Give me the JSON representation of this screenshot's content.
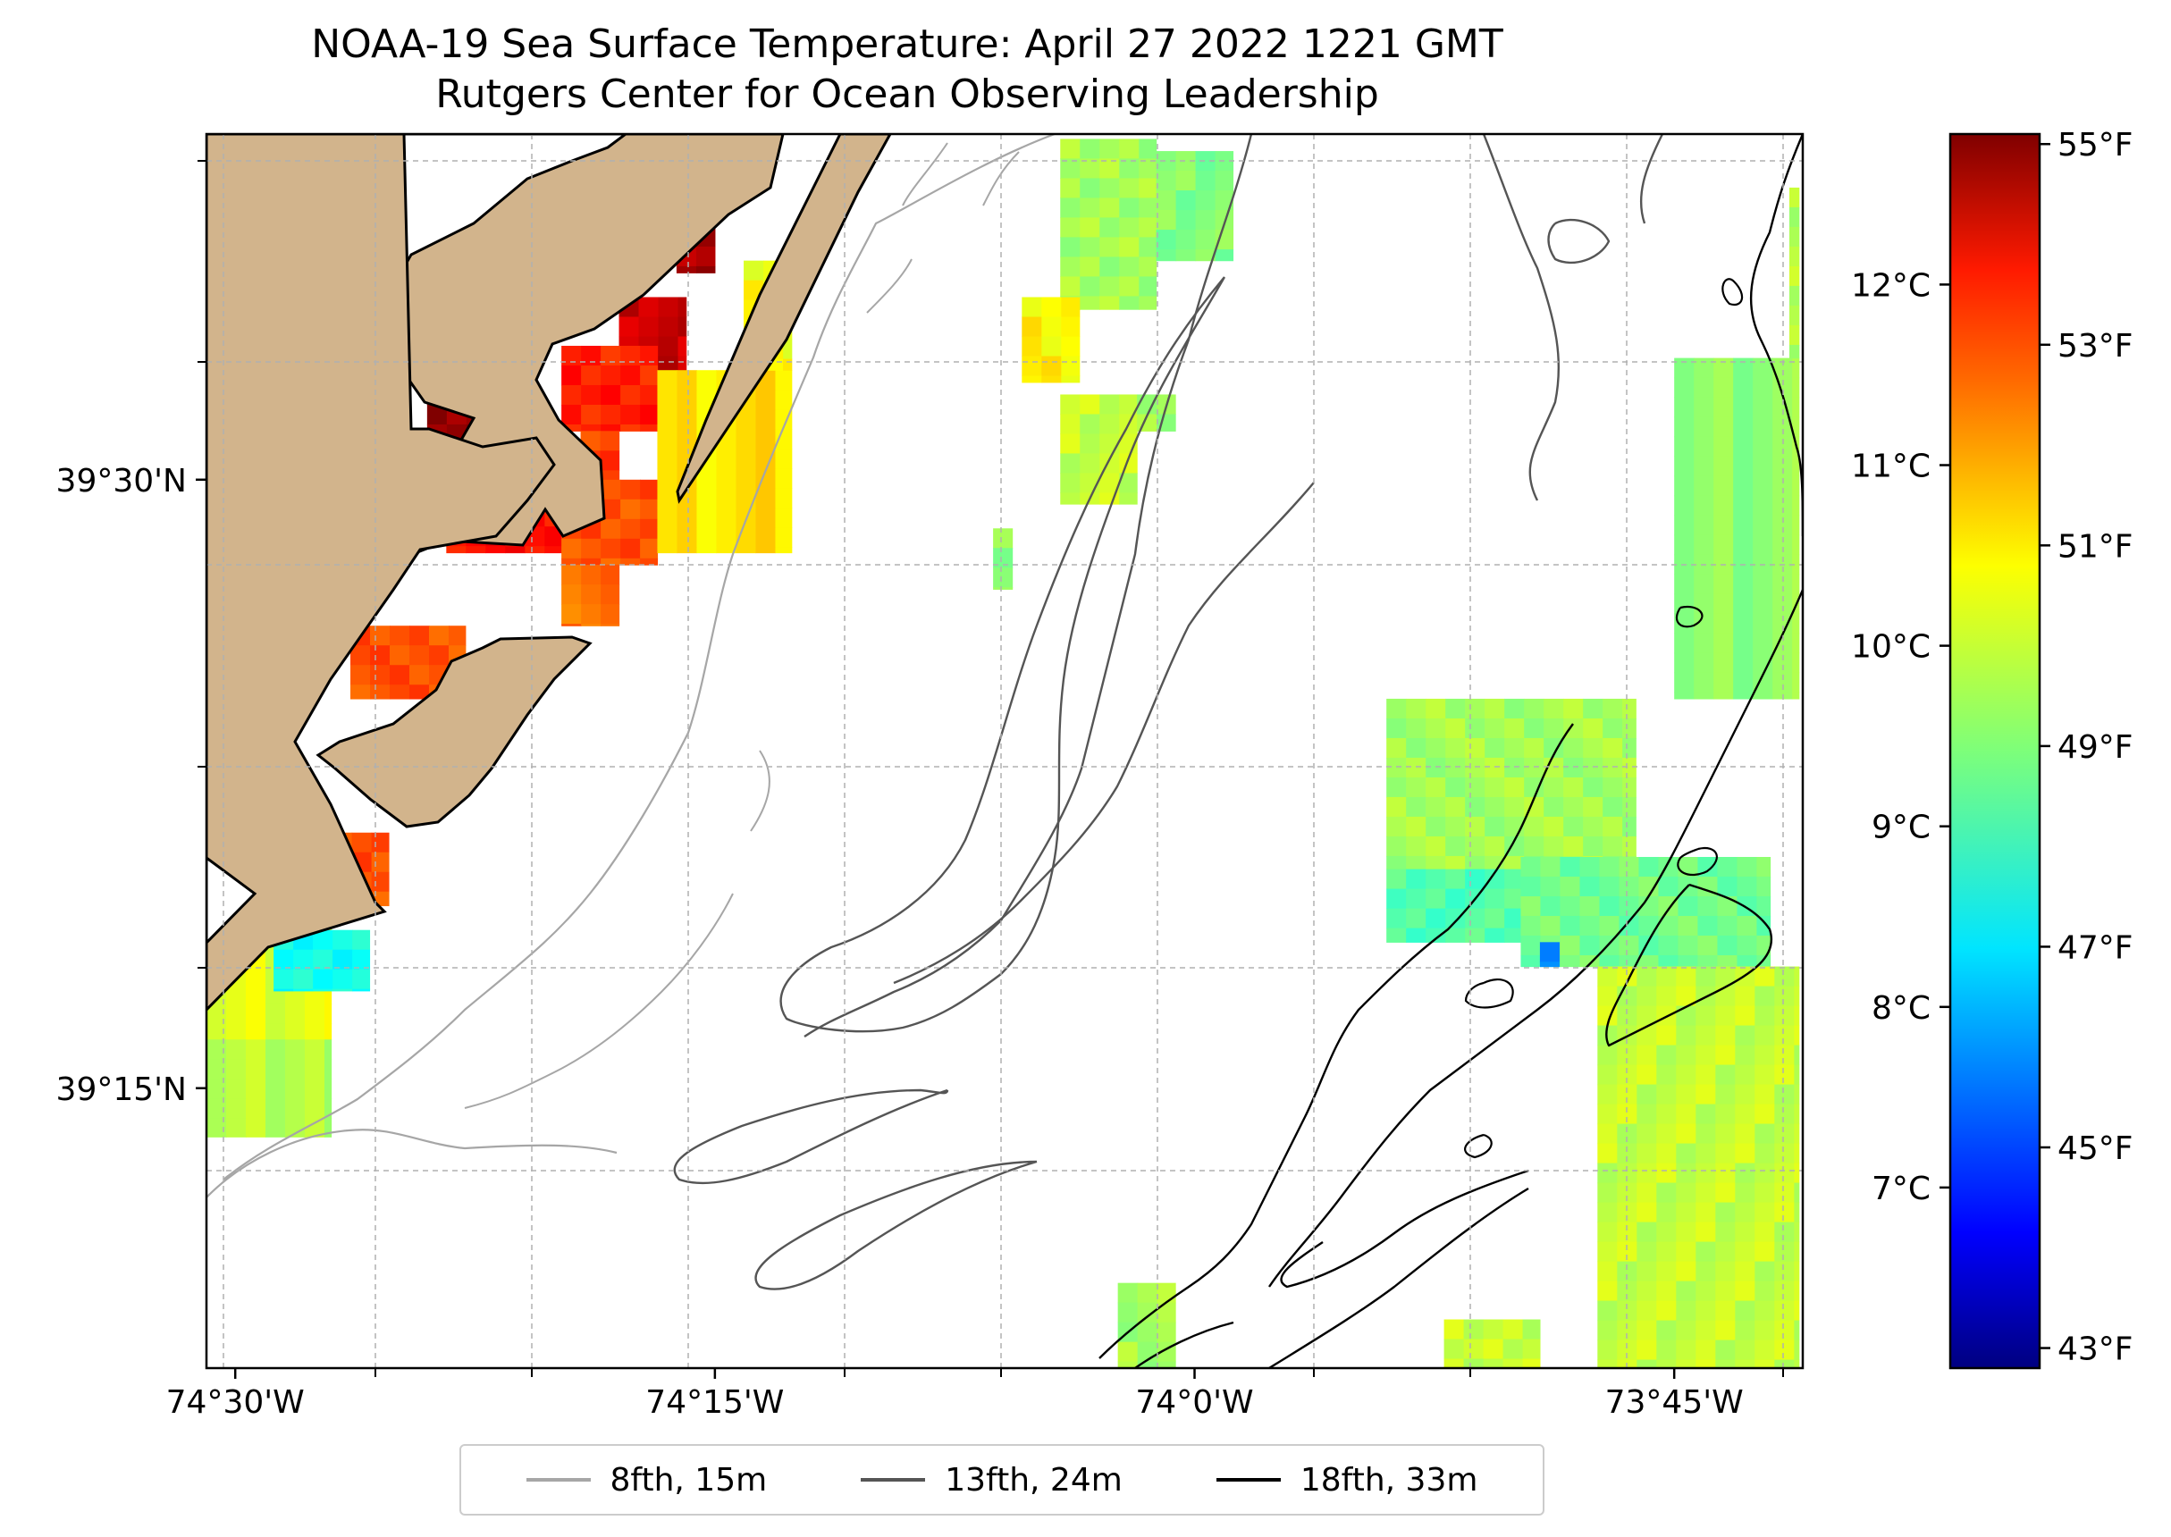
{
  "title": {
    "line1": "NOAA-19 Sea Surface Temperature: April 27 2022 1221 GMT",
    "line2": "Rutgers Center for Ocean Observing Leadership"
  },
  "map": {
    "lon_range": [
      -74.515,
      -73.683
    ],
    "lat_range": [
      39.135,
      39.642
    ],
    "lon_ticks": [
      {
        "value": -74.5,
        "label": "74°30'W"
      },
      {
        "value": -74.25,
        "label": "74°15'W"
      },
      {
        "value": -74.0,
        "label": "74°0'W"
      },
      {
        "value": -73.75,
        "label": "73°45'W"
      }
    ],
    "lat_ticks": [
      {
        "value": 39.5,
        "label": "39°30'N"
      },
      {
        "value": 39.25,
        "label": "39°15'N"
      }
    ],
    "land_color": "#d2b48c",
    "grid": true
  },
  "colorbar": {
    "colormap": "jet",
    "range_f": [
      42.8,
      55.1
    ],
    "f_ticks": [
      {
        "value": 55,
        "label": "55°F"
      },
      {
        "value": 53,
        "label": "53°F"
      },
      {
        "value": 51,
        "label": "51°F"
      },
      {
        "value": 49,
        "label": "49°F"
      },
      {
        "value": 47,
        "label": "47°F"
      },
      {
        "value": 45,
        "label": "45°F"
      },
      {
        "value": 43,
        "label": "43°F"
      }
    ],
    "c_ticks": [
      {
        "value": 12,
        "label": "12°C"
      },
      {
        "value": 11,
        "label": "11°C"
      },
      {
        "value": 10,
        "label": "10°C"
      },
      {
        "value": 9,
        "label": "9°C"
      },
      {
        "value": 8,
        "label": "8°C"
      },
      {
        "value": 7,
        "label": "7°C"
      }
    ]
  },
  "sst_patches_f": [
    {
      "lon": [
        -74.27,
        -74.25
      ],
      "lat": [
        39.585,
        39.62
      ],
      "temp": 54.6
    },
    {
      "lon": [
        -74.3,
        -74.265
      ],
      "lat": [
        39.545,
        39.575
      ],
      "temp": 54.2
    },
    {
      "lon": [
        -74.33,
        -74.28
      ],
      "lat": [
        39.52,
        39.555
      ],
      "temp": 53.2
    },
    {
      "lon": [
        -74.32,
        -74.3
      ],
      "lat": [
        39.49,
        39.52
      ],
      "temp": 52.8
    },
    {
      "lon": [
        -74.4,
        -74.35
      ],
      "lat": [
        39.505,
        39.555
      ],
      "temp": 54.8
    },
    {
      "lon": [
        -74.39,
        -74.33
      ],
      "lat": [
        39.47,
        39.505
      ],
      "temp": 53.4
    },
    {
      "lon": [
        -74.33,
        -74.28
      ],
      "lat": [
        39.465,
        39.5
      ],
      "temp": 52.6
    },
    {
      "lon": [
        -74.33,
        -74.3
      ],
      "lat": [
        39.44,
        39.465
      ],
      "temp": 52.2
    },
    {
      "lon": [
        -74.44,
        -74.38
      ],
      "lat": [
        39.41,
        39.44
      ],
      "temp": 52.6
    },
    {
      "lon": [
        -74.28,
        -74.21
      ],
      "lat": [
        39.47,
        39.545
      ],
      "temp": 50.8
    },
    {
      "lon": [
        -74.235,
        -74.21
      ],
      "lat": [
        39.545,
        39.59
      ],
      "temp": 50.4
    },
    {
      "lon": [
        -74.47,
        -74.42
      ],
      "lat": [
        39.325,
        39.355
      ],
      "temp": 52.6
    },
    {
      "lon": [
        -74.515,
        -74.45
      ],
      "lat": [
        39.27,
        39.325
      ],
      "temp": 50.2
    },
    {
      "lon": [
        -74.48,
        -74.43
      ],
      "lat": [
        39.29,
        39.315
      ],
      "temp": 47.6
    },
    {
      "lon": [
        -74.515,
        -74.45
      ],
      "lat": [
        39.23,
        39.27
      ],
      "temp": 49.6
    },
    {
      "lon": [
        -74.07,
        -74.02
      ],
      "lat": [
        39.57,
        39.64
      ],
      "temp": 49.4
    },
    {
      "lon": [
        -74.02,
        -73.98
      ],
      "lat": [
        39.59,
        39.635
      ],
      "temp": 49.0
    },
    {
      "lon": [
        -74.09,
        -74.06
      ],
      "lat": [
        39.54,
        39.575
      ],
      "temp": 50.6
    },
    {
      "lon": [
        -74.07,
        -74.03
      ],
      "lat": [
        39.49,
        39.535
      ],
      "temp": 49.8
    },
    {
      "lon": [
        -74.03,
        -74.01
      ],
      "lat": [
        39.52,
        39.535
      ],
      "temp": 49.4
    },
    {
      "lon": [
        -74.105,
        -74.095
      ],
      "lat": [
        39.455,
        39.48
      ],
      "temp": 49.2
    },
    {
      "lon": [
        -73.9,
        -73.77
      ],
      "lat": [
        39.34,
        39.41
      ],
      "temp": 49.4
    },
    {
      "lon": [
        -73.9,
        -73.82
      ],
      "lat": [
        39.31,
        39.34
      ],
      "temp": 48.4
    },
    {
      "lon": [
        -73.83,
        -73.7
      ],
      "lat": [
        39.3,
        39.345
      ],
      "temp": 48.8
    },
    {
      "lon": [
        -73.82,
        -73.81
      ],
      "lat": [
        39.3,
        39.31
      ],
      "temp": 46.2
    },
    {
      "lon": [
        -73.79,
        -73.685
      ],
      "lat": [
        39.135,
        39.3
      ],
      "temp": 49.8
    },
    {
      "lon": [
        -73.75,
        -73.685
      ],
      "lat": [
        39.41,
        39.55
      ],
      "temp": 49.2
    },
    {
      "lon": [
        -73.69,
        -73.685
      ],
      "lat": [
        39.55,
        39.62
      ],
      "temp": 49.6
    },
    {
      "lon": [
        -74.04,
        -74.01
      ],
      "lat": [
        39.135,
        39.17
      ],
      "temp": 49.4
    },
    {
      "lon": [
        -73.87,
        -73.82
      ],
      "lat": [
        39.135,
        39.155
      ],
      "temp": 49.8
    }
  ],
  "legend": {
    "entries": [
      {
        "label": "8fth, 15m",
        "color": "#a6a6a6"
      },
      {
        "label": "13fth, 24m",
        "color": "#555555"
      },
      {
        "label": "18fth, 33m",
        "color": "#000000"
      }
    ]
  }
}
